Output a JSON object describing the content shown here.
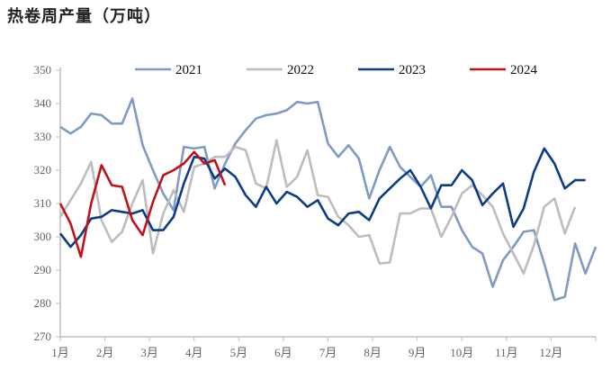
{
  "chart_data": {
    "type": "line",
    "title": "热卷周产量（万吨）",
    "xlabel": "",
    "ylabel": "",
    "ylim": [
      270,
      350
    ],
    "yticks": [
      270,
      280,
      290,
      300,
      310,
      320,
      330,
      340,
      350
    ],
    "x_tick_labels": [
      "1月",
      "2月",
      "3月",
      "4月",
      "5月",
      "6月",
      "7月",
      "8月",
      "9月",
      "10月",
      "11月",
      "12月"
    ],
    "legend_position": "top-center",
    "grid": false,
    "series": [
      {
        "name": "2021",
        "color": "#7f9bc4",
        "values": [
          333,
          331,
          333,
          337,
          336.5,
          334,
          334,
          341.5,
          327.5,
          320,
          313,
          308,
          327,
          326.5,
          327,
          314.5,
          322,
          328,
          332,
          335.5,
          336.5,
          337,
          338,
          340.5,
          340,
          340.5,
          328,
          324,
          327.5,
          323.5,
          311.5,
          320,
          327,
          321,
          318,
          315,
          318.5,
          309,
          309,
          302,
          297,
          295,
          285,
          293,
          297,
          301.5,
          302,
          292,
          281,
          282,
          298,
          289,
          297
        ]
      },
      {
        "name": "2022",
        "color": "#bdbdbd",
        "values": [
          306,
          311,
          316,
          322.5,
          305,
          298.5,
          301.5,
          310,
          317,
          295,
          307,
          314,
          307.5,
          321,
          322,
          324,
          324,
          327,
          326,
          316,
          314.5,
          329,
          315,
          318,
          326,
          312.5,
          312,
          306,
          303.5,
          300,
          300.5,
          292,
          292.3,
          307,
          307,
          308.5,
          308.5,
          300,
          306,
          313,
          315.5,
          312.5,
          309,
          301,
          295,
          289,
          297.5,
          309,
          311.5,
          301,
          309
        ]
      },
      {
        "name": "2023",
        "color": "#0b3d86",
        "values": [
          301,
          297,
          300.5,
          305.5,
          306,
          308,
          307.5,
          307,
          308,
          302,
          302,
          306,
          316,
          324,
          323.5,
          317.5,
          320.5,
          318,
          312.5,
          309,
          315,
          310,
          313.5,
          312,
          309,
          311,
          305.5,
          303.5,
          307,
          307.5,
          305,
          311.5,
          314.5,
          317.5,
          320,
          315,
          308.5,
          315.5,
          315.5,
          320,
          317,
          309.5,
          313,
          316,
          303,
          308.5,
          319.5,
          326.5,
          322,
          314.5,
          317,
          317
        ]
      },
      {
        "name": "2024",
        "color": "#c0121c",
        "values": [
          310,
          304,
          294,
          310,
          321.5,
          315.5,
          315,
          305,
          300.5,
          310.5,
          318.5,
          320,
          322,
          325.5,
          322,
          323,
          315.5
        ]
      }
    ]
  }
}
